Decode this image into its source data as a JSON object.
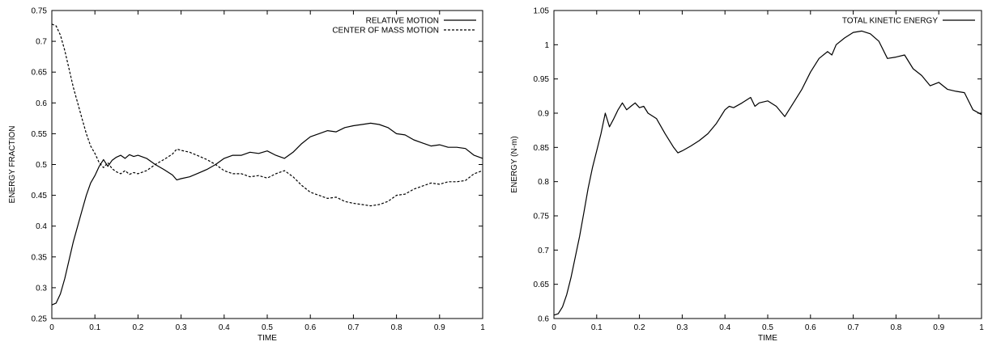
{
  "chart_data": [
    {
      "id": "left",
      "type": "line",
      "title": "",
      "xlabel": "TIME",
      "ylabel": "ENERGY FRACTION",
      "xlim": [
        0,
        1
      ],
      "ylim": [
        0.25,
        0.75
      ],
      "xticks": [
        0,
        0.1,
        0.2,
        0.3,
        0.4,
        0.5,
        0.6,
        0.7,
        0.8,
        0.9,
        1
      ],
      "xtick_labels": [
        "0",
        "0.1",
        "0.2",
        "0.3",
        "0.4",
        "0.5",
        "0.6",
        "0.7",
        "0.8",
        "0.9",
        "1"
      ],
      "yticks": [
        0.25,
        0.3,
        0.35,
        0.4,
        0.45,
        0.5,
        0.55,
        0.6,
        0.65,
        0.7,
        0.75
      ],
      "ytick_labels": [
        "0.25",
        "0.3",
        "0.35",
        "0.4",
        "0.45",
        "0.5",
        "0.55",
        "0.6",
        "0.65",
        "0.7",
        "0.75"
      ],
      "grid": false,
      "legend": "top-right",
      "series": [
        {
          "name": "RELATIVE MOTION",
          "style": "solid",
          "x": [
            0,
            0.01,
            0.02,
            0.03,
            0.04,
            0.05,
            0.06,
            0.07,
            0.08,
            0.09,
            0.1,
            0.11,
            0.12,
            0.13,
            0.14,
            0.15,
            0.16,
            0.17,
            0.18,
            0.19,
            0.2,
            0.22,
            0.24,
            0.26,
            0.28,
            0.29,
            0.3,
            0.32,
            0.34,
            0.36,
            0.38,
            0.4,
            0.42,
            0.44,
            0.46,
            0.48,
            0.5,
            0.52,
            0.54,
            0.56,
            0.58,
            0.6,
            0.62,
            0.64,
            0.66,
            0.68,
            0.7,
            0.72,
            0.74,
            0.76,
            0.78,
            0.8,
            0.82,
            0.84,
            0.86,
            0.88,
            0.9,
            0.92,
            0.94,
            0.96,
            0.98,
            1.0
          ],
          "y": [
            0.272,
            0.275,
            0.29,
            0.315,
            0.345,
            0.375,
            0.4,
            0.425,
            0.45,
            0.47,
            0.482,
            0.497,
            0.508,
            0.497,
            0.507,
            0.512,
            0.515,
            0.51,
            0.516,
            0.513,
            0.515,
            0.51,
            0.5,
            0.492,
            0.483,
            0.475,
            0.477,
            0.48,
            0.486,
            0.492,
            0.5,
            0.51,
            0.515,
            0.515,
            0.52,
            0.518,
            0.522,
            0.515,
            0.51,
            0.52,
            0.534,
            0.545,
            0.55,
            0.555,
            0.553,
            0.56,
            0.563,
            0.565,
            0.567,
            0.565,
            0.56,
            0.55,
            0.548,
            0.54,
            0.535,
            0.53,
            0.532,
            0.528,
            0.528,
            0.526,
            0.515,
            0.51
          ]
        },
        {
          "name": "CENTER OF MASS MOTION",
          "style": "dashed",
          "x": [
            0,
            0.01,
            0.02,
            0.03,
            0.04,
            0.05,
            0.06,
            0.07,
            0.08,
            0.09,
            0.1,
            0.11,
            0.12,
            0.13,
            0.14,
            0.15,
            0.16,
            0.17,
            0.18,
            0.19,
            0.2,
            0.22,
            0.24,
            0.26,
            0.28,
            0.29,
            0.3,
            0.32,
            0.34,
            0.36,
            0.38,
            0.4,
            0.42,
            0.44,
            0.46,
            0.48,
            0.5,
            0.52,
            0.54,
            0.56,
            0.58,
            0.6,
            0.62,
            0.64,
            0.66,
            0.68,
            0.7,
            0.72,
            0.74,
            0.76,
            0.78,
            0.8,
            0.82,
            0.84,
            0.86,
            0.88,
            0.9,
            0.92,
            0.94,
            0.96,
            0.98,
            1.0
          ],
          "y": [
            0.728,
            0.725,
            0.71,
            0.685,
            0.655,
            0.625,
            0.6,
            0.575,
            0.55,
            0.53,
            0.518,
            0.503,
            0.495,
            0.503,
            0.493,
            0.488,
            0.485,
            0.49,
            0.484,
            0.487,
            0.485,
            0.49,
            0.5,
            0.508,
            0.517,
            0.525,
            0.523,
            0.52,
            0.514,
            0.508,
            0.5,
            0.49,
            0.485,
            0.485,
            0.48,
            0.482,
            0.478,
            0.485,
            0.49,
            0.48,
            0.466,
            0.455,
            0.45,
            0.445,
            0.447,
            0.44,
            0.437,
            0.435,
            0.433,
            0.435,
            0.44,
            0.45,
            0.452,
            0.46,
            0.465,
            0.47,
            0.468,
            0.472,
            0.472,
            0.474,
            0.485,
            0.49
          ]
        }
      ]
    },
    {
      "id": "right",
      "type": "line",
      "title": "",
      "xlabel": "TIME",
      "ylabel": "ENERGY (N-m)",
      "xlim": [
        0,
        1
      ],
      "ylim": [
        0.6,
        1.05
      ],
      "xticks": [
        0,
        0.1,
        0.2,
        0.3,
        0.4,
        0.5,
        0.6,
        0.7,
        0.8,
        0.9,
        1
      ],
      "xtick_labels": [
        "0",
        "0.1",
        "0.2",
        "0.3",
        "0.4",
        "0.5",
        "0.6",
        "0.7",
        "0.8",
        "0.9",
        "1"
      ],
      "yticks": [
        0.6,
        0.65,
        0.7,
        0.75,
        0.8,
        0.85,
        0.9,
        0.95,
        1.0,
        1.05
      ],
      "ytick_labels": [
        "0.6",
        "0.65",
        "0.7",
        "0.75",
        "0.8",
        "0.85",
        "0.9",
        "0.95",
        "1",
        "1.05"
      ],
      "grid": false,
      "legend": "top-right",
      "series": [
        {
          "name": "TOTAL KINETIC ENERGY",
          "style": "solid",
          "x": [
            0,
            0.01,
            0.02,
            0.03,
            0.04,
            0.05,
            0.06,
            0.07,
            0.08,
            0.09,
            0.1,
            0.11,
            0.12,
            0.13,
            0.14,
            0.15,
            0.16,
            0.17,
            0.18,
            0.19,
            0.2,
            0.21,
            0.22,
            0.24,
            0.26,
            0.28,
            0.29,
            0.3,
            0.32,
            0.34,
            0.36,
            0.38,
            0.4,
            0.41,
            0.42,
            0.44,
            0.46,
            0.47,
            0.48,
            0.5,
            0.52,
            0.54,
            0.56,
            0.58,
            0.6,
            0.62,
            0.64,
            0.65,
            0.66,
            0.68,
            0.7,
            0.72,
            0.74,
            0.76,
            0.78,
            0.8,
            0.82,
            0.84,
            0.86,
            0.88,
            0.9,
            0.92,
            0.94,
            0.96,
            0.98,
            1.0
          ],
          "y": [
            0.605,
            0.607,
            0.617,
            0.635,
            0.66,
            0.69,
            0.72,
            0.755,
            0.79,
            0.82,
            0.845,
            0.87,
            0.9,
            0.88,
            0.892,
            0.905,
            0.915,
            0.905,
            0.91,
            0.915,
            0.908,
            0.91,
            0.9,
            0.892,
            0.87,
            0.85,
            0.842,
            0.845,
            0.852,
            0.86,
            0.87,
            0.885,
            0.905,
            0.91,
            0.908,
            0.915,
            0.923,
            0.91,
            0.915,
            0.918,
            0.91,
            0.895,
            0.915,
            0.935,
            0.96,
            0.98,
            0.99,
            0.985,
            1.0,
            1.01,
            1.018,
            1.02,
            1.016,
            1.005,
            0.98,
            0.982,
            0.985,
            0.965,
            0.955,
            0.94,
            0.945,
            0.935,
            0.932,
            0.93,
            0.905,
            0.898
          ]
        }
      ]
    }
  ]
}
